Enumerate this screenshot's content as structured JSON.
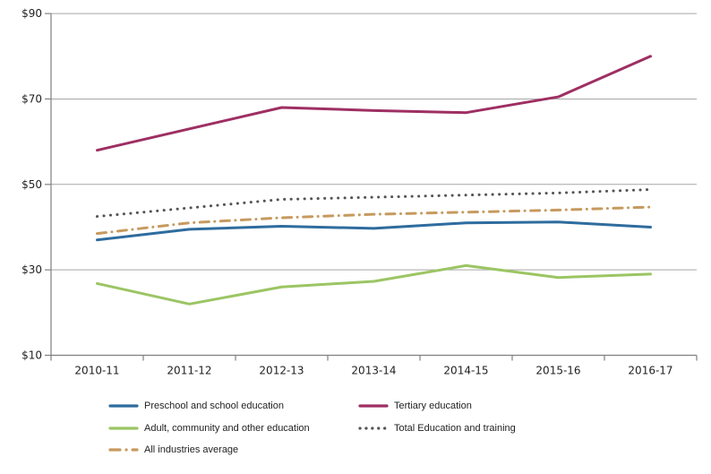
{
  "chart_data": {
    "type": "line",
    "title": "",
    "categories": [
      "2010-11",
      "2011-12",
      "2012-13",
      "2013-14",
      "2014-15",
      "2015-16",
      "2016-17"
    ],
    "series": [
      {
        "name": "Preschool and school education",
        "color": "#2E6C9E",
        "style": "solid",
        "values": [
          37,
          39.5,
          40.2,
          39.7,
          41,
          41.2,
          40
        ]
      },
      {
        "name": "Tertiary education",
        "color": "#9E2F63",
        "style": "solid",
        "values": [
          58,
          63,
          68,
          67.3,
          66.8,
          70.5,
          80
        ]
      },
      {
        "name": "Adult, community and other education",
        "color": "#9BC563",
        "style": "solid",
        "values": [
          26.8,
          22,
          26,
          27.3,
          31,
          28.2,
          29
        ]
      },
      {
        "name": "Total Education and training",
        "color": "#545454",
        "style": "dotted",
        "values": [
          42.5,
          44.5,
          46.5,
          47,
          47.5,
          48,
          48.8
        ]
      },
      {
        "name": "All industries average",
        "color": "#C69A5E",
        "style": "dashdot",
        "values": [
          38.5,
          41,
          42.2,
          43,
          43.5,
          44,
          44.7
        ]
      }
    ],
    "y_axis": {
      "min": 10,
      "max": 90,
      "step": 20,
      "tick_labels": [
        "$10",
        "$30",
        "$50",
        "$70",
        "$90"
      ]
    },
    "x_axis": {
      "labels": [
        "2010-11",
        "2011-12",
        "2012-13",
        "2013-14",
        "2014-15",
        "2015-16",
        "2016-17"
      ]
    },
    "grid": true,
    "legend_position": "bottom",
    "legend_columns": [
      [
        0,
        2,
        4
      ],
      [
        1,
        3
      ]
    ]
  },
  "style": {
    "gridline_color": "#A6A6A6",
    "axis_color": "#808080",
    "text_color": "#1f1f1f",
    "background": "#FFFFFF"
  }
}
